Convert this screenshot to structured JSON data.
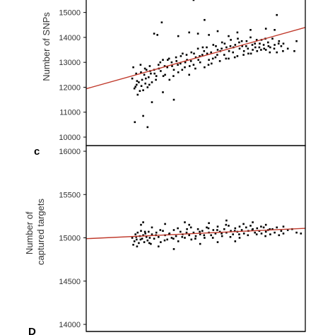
{
  "colors": {
    "points": "#000000",
    "fit_line": "#c0392b",
    "frame": "#000000",
    "text": "#333333"
  },
  "panel_letters": {
    "c": "c",
    "d": "D"
  },
  "chart_data": [
    {
      "type": "scatter",
      "panel_label": "",
      "title": "",
      "xlabel": "",
      "ylabel": "Number of SNPs",
      "ylim": [
        10000,
        15500
      ],
      "yticks": [
        10000,
        11000,
        12000,
        13000,
        14000,
        15000
      ],
      "ytick_labels": [
        "10000",
        "11000",
        "12000",
        "13000",
        "14000",
        "15000"
      ],
      "xlim": [
        0,
        1
      ],
      "grid": false,
      "legend": "none",
      "trend_line": {
        "x": [
          0,
          1
        ],
        "y": [
          11940,
          14400
        ]
      },
      "points": [
        [
          0.21,
          12350
        ],
        [
          0.22,
          11950
        ],
        [
          0.225,
          12020
        ],
        [
          0.23,
          12100
        ],
        [
          0.235,
          11700
        ],
        [
          0.24,
          12200
        ],
        [
          0.245,
          11850
        ],
        [
          0.25,
          12600
        ],
        [
          0.255,
          12300
        ],
        [
          0.26,
          11880
        ],
        [
          0.265,
          12500
        ],
        [
          0.27,
          12150
        ],
        [
          0.275,
          12700
        ],
        [
          0.28,
          12000
        ],
        [
          0.285,
          12400
        ],
        [
          0.29,
          12850
        ],
        [
          0.295,
          12550
        ],
        [
          0.3,
          12200
        ],
        [
          0.31,
          12700
        ],
        [
          0.32,
          12450
        ],
        [
          0.33,
          12900
        ],
        [
          0.34,
          12650
        ],
        [
          0.35,
          13100
        ],
        [
          0.36,
          12500
        ],
        [
          0.37,
          12800
        ],
        [
          0.38,
          12300
        ],
        [
          0.39,
          13000
        ],
        [
          0.4,
          12700
        ],
        [
          0.41,
          13200
        ],
        [
          0.42,
          12600
        ],
        [
          0.43,
          12950
        ],
        [
          0.44,
          13350
        ],
        [
          0.45,
          12800
        ],
        [
          0.46,
          13100
        ],
        [
          0.47,
          12500
        ],
        [
          0.48,
          13400
        ],
        [
          0.49,
          12900
        ],
        [
          0.5,
          13200
        ],
        [
          0.51,
          13550
        ],
        [
          0.52,
          13000
        ],
        [
          0.53,
          13300
        ],
        [
          0.54,
          12800
        ],
        [
          0.55,
          13600
        ],
        [
          0.56,
          13100
        ],
        [
          0.57,
          13400
        ],
        [
          0.58,
          13700
        ],
        [
          0.59,
          13200
        ],
        [
          0.6,
          13500
        ],
        [
          0.61,
          13050
        ],
        [
          0.62,
          13800
        ],
        [
          0.63,
          13300
        ],
        [
          0.64,
          13600
        ],
        [
          0.65,
          13150
        ],
        [
          0.66,
          13900
        ],
        [
          0.67,
          13400
        ],
        [
          0.68,
          13700
        ],
        [
          0.69,
          13250
        ],
        [
          0.7,
          13550
        ],
        [
          0.71,
          13850
        ],
        [
          0.72,
          13450
        ],
        [
          0.73,
          13650
        ],
        [
          0.74,
          13350
        ],
        [
          0.75,
          14000
        ],
        [
          0.76,
          13500
        ],
        [
          0.77,
          13750
        ],
        [
          0.78,
          13450
        ],
        [
          0.79,
          13600
        ],
        [
          0.8,
          13900
        ],
        [
          0.81,
          13700
        ],
        [
          0.82,
          13500
        ],
        [
          0.83,
          13800
        ],
        [
          0.84,
          13600
        ],
        [
          0.85,
          13950
        ],
        [
          0.86,
          13700
        ],
        [
          0.87,
          13400
        ],
        [
          0.88,
          13850
        ],
        [
          0.89,
          13650
        ],
        [
          0.9,
          13750
        ],
        [
          0.92,
          13550
        ],
        [
          0.96,
          13850
        ],
        [
          0.215,
          12800
        ],
        [
          0.228,
          12550
        ],
        [
          0.248,
          12900
        ],
        [
          0.268,
          12750
        ],
        [
          0.288,
          12100
        ],
        [
          0.318,
          12300
        ],
        [
          0.338,
          13000
        ],
        [
          0.358,
          12850
        ],
        [
          0.378,
          13150
        ],
        [
          0.398,
          12450
        ],
        [
          0.418,
          12900
        ],
        [
          0.438,
          12700
        ],
        [
          0.458,
          13300
        ],
        [
          0.478,
          13050
        ],
        [
          0.498,
          12750
        ],
        [
          0.518,
          13250
        ],
        [
          0.538,
          13450
        ],
        [
          0.558,
          12900
        ],
        [
          0.578,
          13150
        ],
        [
          0.598,
          13300
        ],
        [
          0.618,
          13550
        ],
        [
          0.638,
          13150
        ],
        [
          0.658,
          13650
        ],
        [
          0.678,
          13200
        ],
        [
          0.698,
          13800
        ],
        [
          0.718,
          13300
        ],
        [
          0.738,
          13550
        ],
        [
          0.758,
          13700
        ],
        [
          0.778,
          13900
        ],
        [
          0.798,
          13500
        ],
        [
          0.818,
          13950
        ],
        [
          0.838,
          13400
        ],
        [
          0.858,
          13550
        ],
        [
          0.878,
          13750
        ],
        [
          0.898,
          13450
        ],
        [
          0.232,
          12250
        ],
        [
          0.252,
          12050
        ],
        [
          0.272,
          12350
        ],
        [
          0.292,
          12650
        ],
        [
          0.312,
          12550
        ],
        [
          0.332,
          12750
        ],
        [
          0.352,
          12450
        ],
        [
          0.372,
          13100
        ],
        [
          0.392,
          12850
        ],
        [
          0.412,
          13050
        ],
        [
          0.432,
          13250
        ],
        [
          0.452,
          13000
        ],
        [
          0.472,
          12850
        ],
        [
          0.492,
          13350
        ],
        [
          0.512,
          13100
        ],
        [
          0.532,
          13600
        ],
        [
          0.552,
          13350
        ],
        [
          0.572,
          12950
        ],
        [
          0.592,
          13650
        ],
        [
          0.612,
          13450
        ],
        [
          0.632,
          13750
        ],
        [
          0.652,
          13450
        ],
        [
          0.672,
          13600
        ],
        [
          0.692,
          13950
        ],
        [
          0.712,
          13650
        ],
        [
          0.732,
          13850
        ],
        [
          0.752,
          13350
        ],
        [
          0.772,
          13600
        ],
        [
          0.792,
          13750
        ],
        [
          0.812,
          13550
        ],
        [
          0.832,
          13650
        ],
        [
          0.31,
          14150
        ],
        [
          0.325,
          14100
        ],
        [
          0.345,
          14600
        ],
        [
          0.42,
          14050
        ],
        [
          0.47,
          14200
        ],
        [
          0.51,
          14150
        ],
        [
          0.56,
          14100
        ],
        [
          0.6,
          14250
        ],
        [
          0.65,
          14050
        ],
        [
          0.69,
          14200
        ],
        [
          0.75,
          14300
        ],
        [
          0.82,
          14350
        ],
        [
          0.87,
          14900
        ],
        [
          0.86,
          14300
        ],
        [
          0.54,
          14700
        ],
        [
          0.49,
          15500
        ],
        [
          0.28,
          10400
        ],
        [
          0.222,
          10600
        ],
        [
          0.26,
          10850
        ],
        [
          0.35,
          11800
        ],
        [
          0.95,
          13450
        ],
        [
          0.3,
          11400
        ],
        [
          0.4,
          11500
        ]
      ]
    },
    {
      "type": "scatter",
      "panel_label": "c",
      "title": "",
      "xlabel": "",
      "ylabel": "Number of captured targets",
      "ylabel_lines": [
        "Number of",
        "captured targets"
      ],
      "ylim": [
        14000,
        16000
      ],
      "yticks": [
        14000,
        14500,
        15000,
        15500,
        16000
      ],
      "ytick_labels": [
        "14000",
        "14500",
        "15000",
        "15500",
        "16000"
      ],
      "xlim": [
        0,
        1
      ],
      "grid": false,
      "legend": "none",
      "trend_line": {
        "x": [
          0,
          1
        ],
        "y": [
          14990,
          15110
        ]
      },
      "points": [
        [
          0.21,
          15000
        ],
        [
          0.22,
          14960
        ],
        [
          0.225,
          15040
        ],
        [
          0.23,
          14980
        ],
        [
          0.235,
          15060
        ],
        [
          0.24,
          14940
        ],
        [
          0.245,
          15020
        ],
        [
          0.25,
          15080
        ],
        [
          0.255,
          14990
        ],
        [
          0.26,
          15030
        ],
        [
          0.265,
          14950
        ],
        [
          0.27,
          15050
        ],
        [
          0.275,
          15010
        ],
        [
          0.28,
          14970
        ],
        [
          0.285,
          15070
        ],
        [
          0.29,
          15000
        ],
        [
          0.295,
          14930
        ],
        [
          0.3,
          15040
        ],
        [
          0.31,
          14990
        ],
        [
          0.32,
          15060
        ],
        [
          0.33,
          15010
        ],
        [
          0.34,
          14950
        ],
        [
          0.35,
          15080
        ],
        [
          0.36,
          15030
        ],
        [
          0.37,
          14980
        ],
        [
          0.38,
          15050
        ],
        [
          0.39,
          15000
        ],
        [
          0.4,
          15090
        ],
        [
          0.41,
          15020
        ],
        [
          0.42,
          14960
        ],
        [
          0.43,
          15070
        ],
        [
          0.44,
          15040
        ],
        [
          0.45,
          15000
        ],
        [
          0.46,
          15100
        ],
        [
          0.47,
          15030
        ],
        [
          0.48,
          14980
        ],
        [
          0.49,
          15060
        ],
        [
          0.5,
          15020
        ],
        [
          0.51,
          15100
        ],
        [
          0.52,
          15040
        ],
        [
          0.53,
          15080
        ],
        [
          0.54,
          15000
        ],
        [
          0.55,
          15120
        ],
        [
          0.56,
          15060
        ],
        [
          0.57,
          15030
        ],
        [
          0.58,
          15090
        ],
        [
          0.59,
          15050
        ],
        [
          0.6,
          15130
        ],
        [
          0.61,
          15070
        ],
        [
          0.62,
          15020
        ],
        [
          0.63,
          15100
        ],
        [
          0.64,
          15060
        ],
        [
          0.65,
          15140
        ],
        [
          0.66,
          15080
        ],
        [
          0.67,
          15040
        ],
        [
          0.68,
          15110
        ],
        [
          0.69,
          15070
        ],
        [
          0.7,
          15130
        ],
        [
          0.71,
          15090
        ],
        [
          0.72,
          15050
        ],
        [
          0.73,
          15120
        ],
        [
          0.74,
          15080
        ],
        [
          0.75,
          15140
        ],
        [
          0.76,
          15100
        ],
        [
          0.77,
          15060
        ],
        [
          0.78,
          15110
        ],
        [
          0.79,
          15080
        ],
        [
          0.8,
          15050
        ],
        [
          0.81,
          15120
        ],
        [
          0.82,
          15070
        ],
        [
          0.83,
          15090
        ],
        [
          0.84,
          15040
        ],
        [
          0.85,
          15100
        ],
        [
          0.86,
          15060
        ],
        [
          0.87,
          15120
        ],
        [
          0.88,
          15030
        ],
        [
          0.89,
          15080
        ],
        [
          0.9,
          15050
        ],
        [
          0.92,
          15090
        ],
        [
          0.96,
          15060
        ],
        [
          0.215,
          14920
        ],
        [
          0.228,
          15010
        ],
        [
          0.248,
          14980
        ],
        [
          0.268,
          15070
        ],
        [
          0.288,
          14940
        ],
        [
          0.318,
          15030
        ],
        [
          0.338,
          15090
        ],
        [
          0.358,
          14970
        ],
        [
          0.378,
          15040
        ],
        [
          0.398,
          14990
        ],
        [
          0.418,
          15110
        ],
        [
          0.438,
          15010
        ],
        [
          0.458,
          15060
        ],
        [
          0.478,
          15120
        ],
        [
          0.498,
          14990
        ],
        [
          0.518,
          15070
        ],
        [
          0.538,
          15030
        ],
        [
          0.558,
          15110
        ],
        [
          0.578,
          15000
        ],
        [
          0.598,
          15090
        ],
        [
          0.618,
          15050
        ],
        [
          0.638,
          15150
        ],
        [
          0.658,
          15010
        ],
        [
          0.678,
          15080
        ],
        [
          0.698,
          15040
        ],
        [
          0.718,
          15160
        ],
        [
          0.738,
          15030
        ],
        [
          0.758,
          15090
        ],
        [
          0.778,
          15040
        ],
        [
          0.798,
          15130
        ],
        [
          0.818,
          15020
        ],
        [
          0.838,
          15100
        ],
        [
          0.26,
          15180
        ],
        [
          0.3,
          15120
        ],
        [
          0.33,
          14900
        ],
        [
          0.4,
          14870
        ],
        [
          0.45,
          15180
        ],
        [
          0.52,
          14930
        ],
        [
          0.6,
          14950
        ],
        [
          0.64,
          15200
        ],
        [
          0.7,
          15000
        ],
        [
          0.76,
          15180
        ],
        [
          0.82,
          15150
        ],
        [
          0.9,
          15130
        ],
        [
          0.94,
          15100
        ],
        [
          0.98,
          15050
        ],
        [
          0.232,
          14900
        ],
        [
          0.25,
          15150
        ],
        [
          0.36,
          15160
        ],
        [
          0.47,
          15150
        ],
        [
          0.56,
          15170
        ],
        [
          0.68,
          14960
        ]
      ]
    }
  ]
}
